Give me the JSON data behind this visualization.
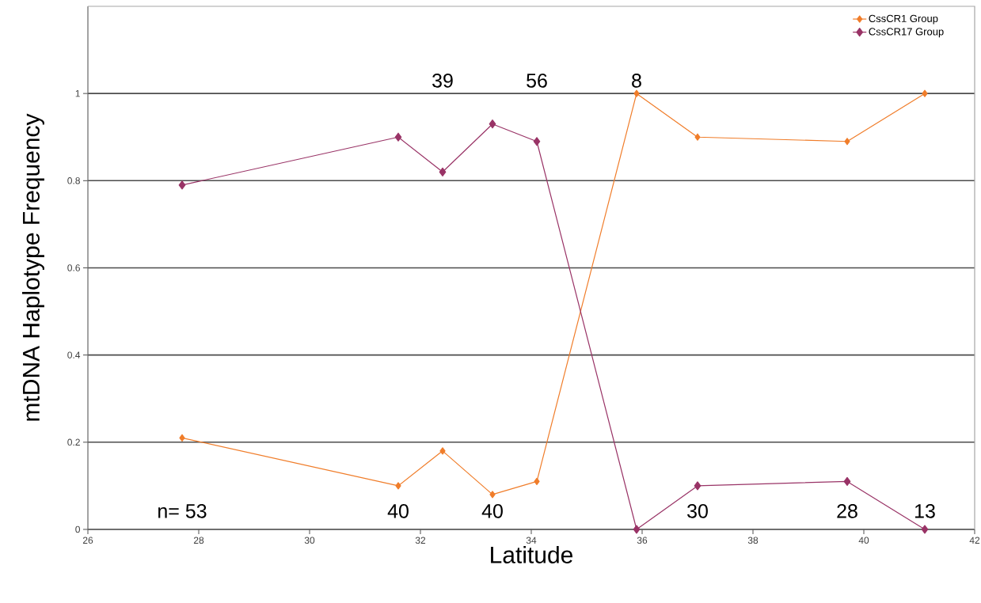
{
  "chart_data": {
    "type": "line",
    "xlabel": "Latitude",
    "ylabel": "mtDNA Haplotype Frequency",
    "x": [
      27.7,
      31.6,
      32.4,
      33.3,
      34.1,
      35.9,
      37.0,
      39.7,
      41.1
    ],
    "series": [
      {
        "name": "CssCR1 Group",
        "color": "#f07d2a",
        "values": [
          0.21,
          0.1,
          0.18,
          0.08,
          0.11,
          1,
          0.9,
          0.89,
          1
        ]
      },
      {
        "name": "CssCR17 Group",
        "color": "#993366",
        "values": [
          0.79,
          0.9,
          0.82,
          0.93,
          0.89,
          0,
          0.1,
          0.11,
          0
        ]
      }
    ],
    "xlim": [
      26,
      42
    ],
    "xticks": [
      26,
      28,
      30,
      32,
      34,
      36,
      38,
      40,
      42
    ],
    "ylim": [
      0,
      1.2
    ],
    "yticks": [
      0,
      0.2,
      0.4,
      0.6,
      0.8,
      1
    ],
    "annotations": [
      "n= 53",
      "40",
      "39",
      "40",
      "56",
      "8",
      "30",
      "28",
      "13"
    ],
    "grid": "y",
    "legend": "top right",
    "marker": "diamond",
    "line_style": "solid"
  }
}
